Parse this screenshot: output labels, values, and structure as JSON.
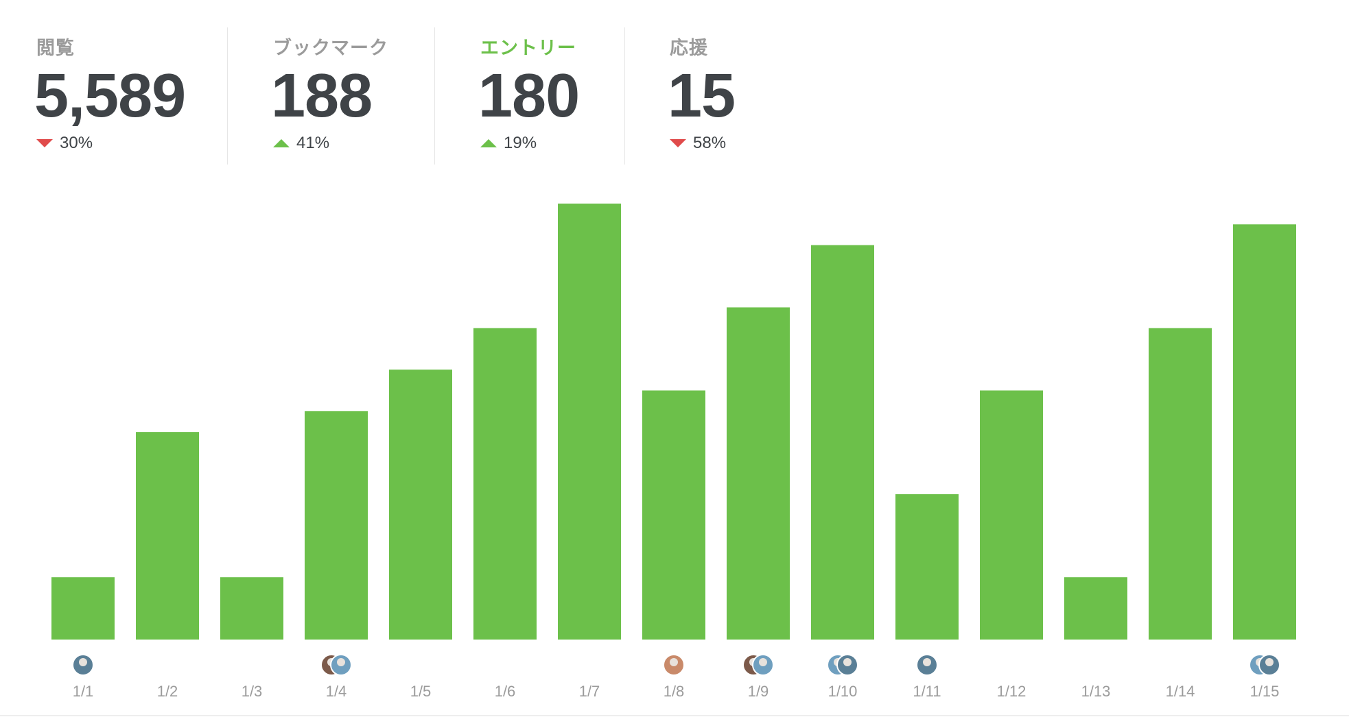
{
  "stats": [
    {
      "label": "閲覧",
      "value": "5,589",
      "change": "30%",
      "direction": "down",
      "active": false
    },
    {
      "label": "ブックマーク",
      "value": "188",
      "change": "41%",
      "direction": "up",
      "active": false
    },
    {
      "label": "エントリー",
      "value": "180",
      "change": "19%",
      "direction": "up",
      "active": true
    },
    {
      "label": "応援",
      "value": "15",
      "change": "58%",
      "direction": "down",
      "active": false
    }
  ],
  "colors": {
    "bar": "#6cc04a",
    "active_label": "#6cc04a",
    "down": "#e04b4b",
    "up": "#6cc04a",
    "label": "#9b9b9b",
    "value": "#3f4347"
  },
  "chart_data": {
    "type": "bar",
    "title": "",
    "xlabel": "",
    "ylabel": "",
    "categories": [
      "1/1",
      "1/2",
      "1/3",
      "1/4",
      "1/5",
      "1/6",
      "1/7",
      "1/8",
      "1/9",
      "1/10",
      "1/11",
      "1/12",
      "1/13",
      "1/14",
      "1/15"
    ],
    "values": [
      3,
      10,
      3,
      11,
      13,
      15,
      21,
      12,
      16,
      19,
      7,
      12,
      3,
      15,
      20
    ],
    "avatar_counts": [
      1,
      0,
      0,
      2,
      0,
      0,
      0,
      1,
      2,
      2,
      1,
      0,
      0,
      0,
      2
    ],
    "ylim": [
      0,
      21
    ],
    "grid": false,
    "legend": "none"
  }
}
